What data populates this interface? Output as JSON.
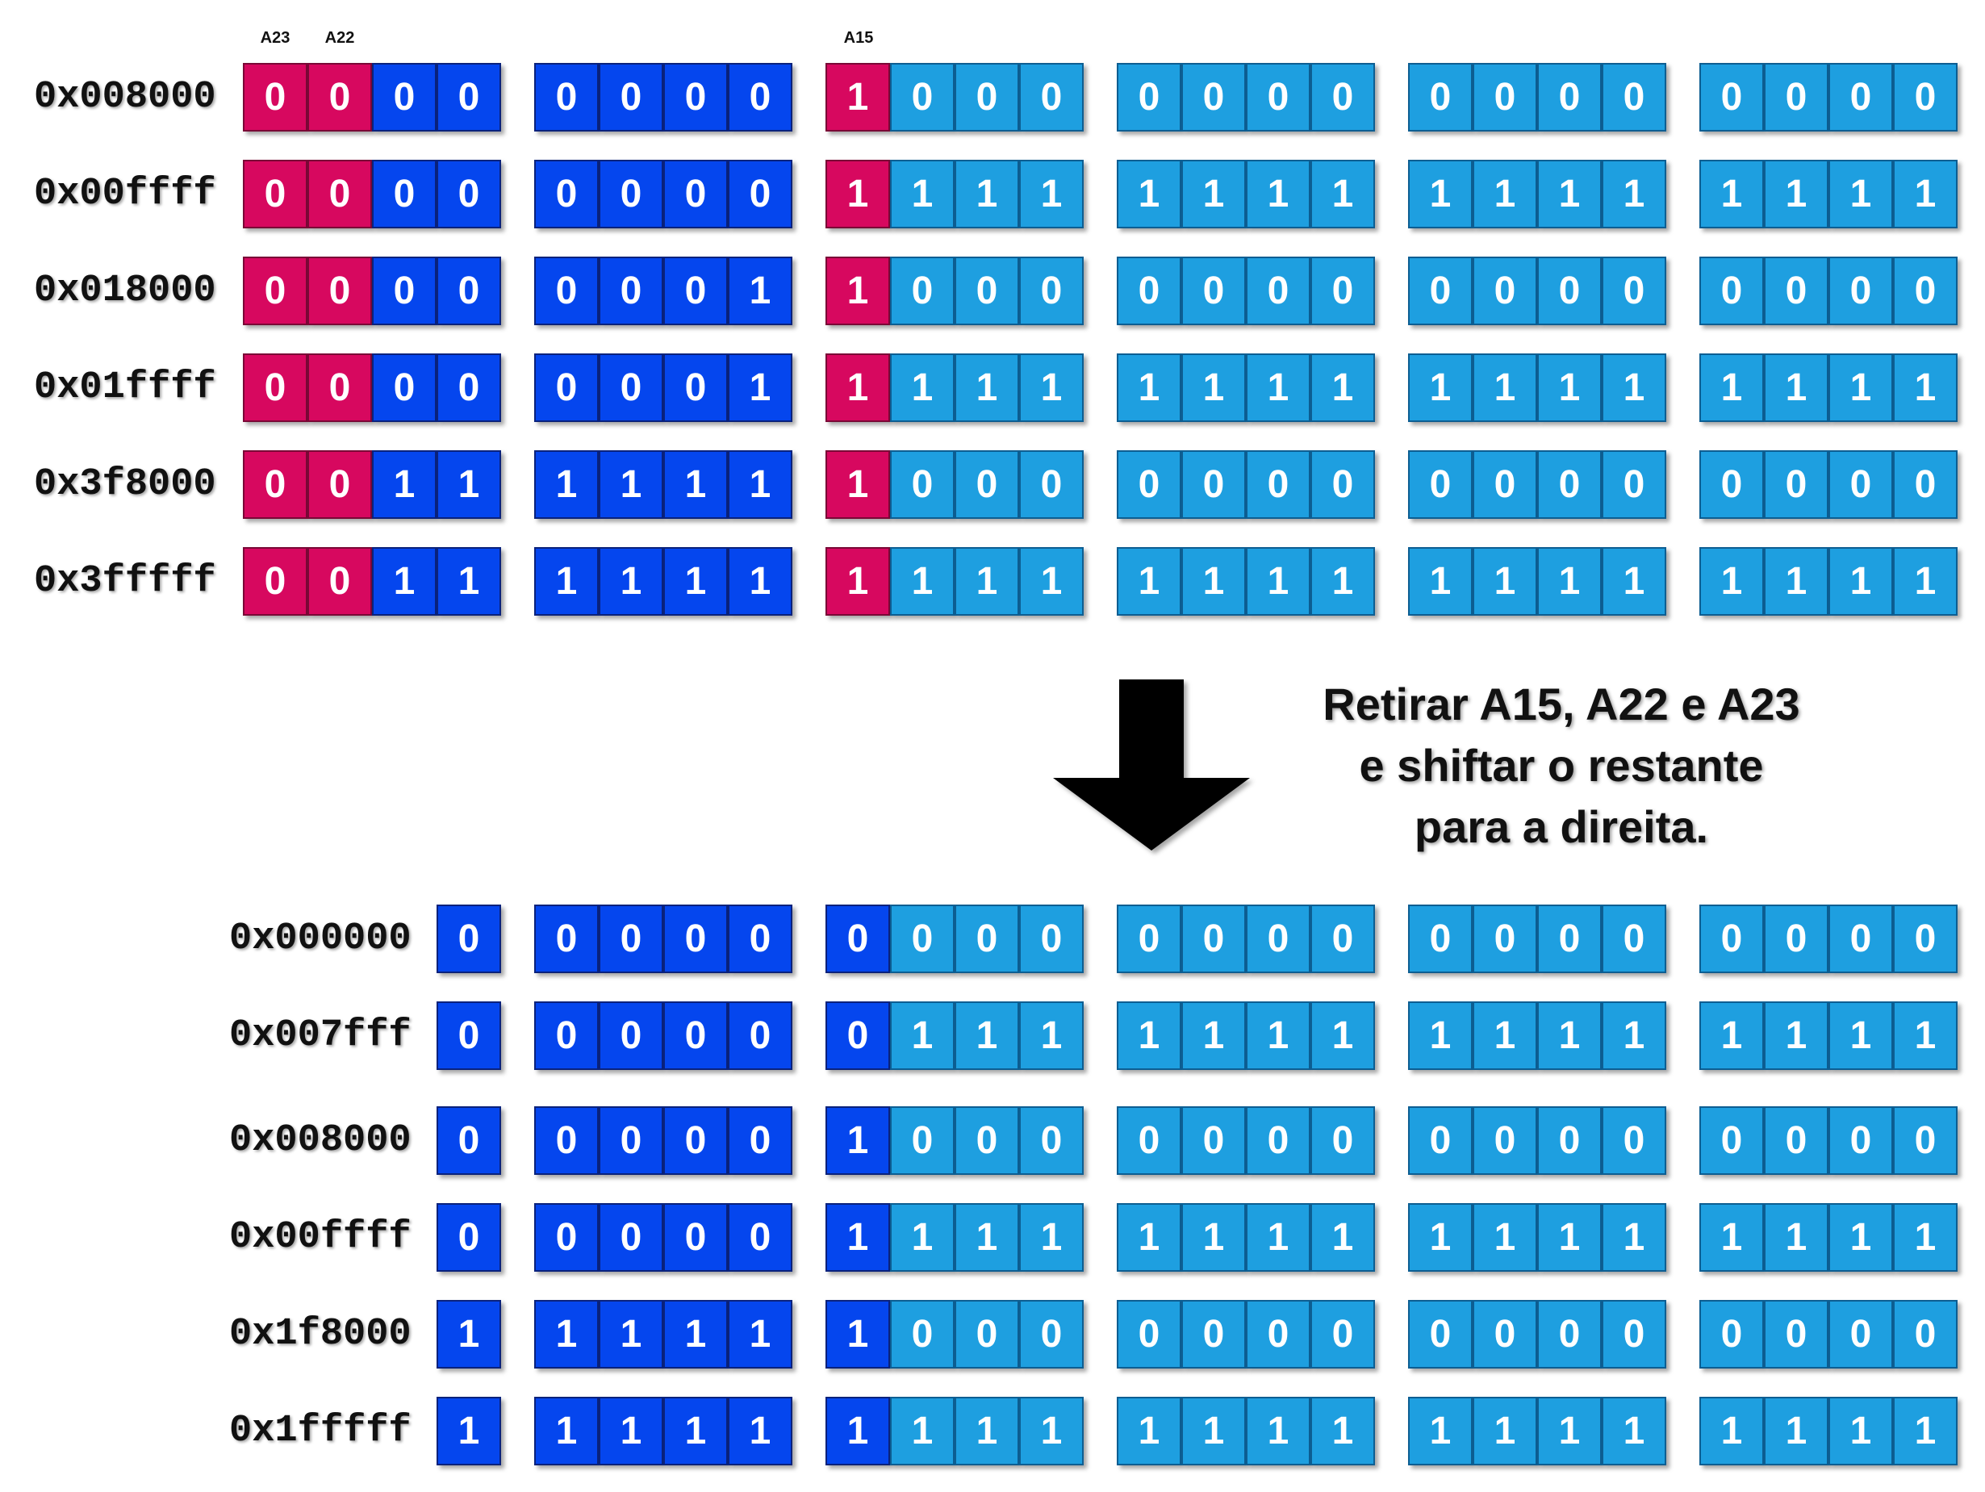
{
  "bit_labels": {
    "a23": "A23",
    "a22": "A22",
    "a15": "A15"
  },
  "top_rows": [
    {
      "address": "0x008000",
      "bits": [
        "0",
        "0",
        "0",
        "0",
        "0",
        "0",
        "0",
        "0",
        "1",
        "0",
        "0",
        "0",
        "0",
        "0",
        "0",
        "0",
        "0",
        "0",
        "0",
        "0",
        "0",
        "0",
        "0",
        "0"
      ]
    },
    {
      "address": "0x00ffff",
      "bits": [
        "0",
        "0",
        "0",
        "0",
        "0",
        "0",
        "0",
        "0",
        "1",
        "1",
        "1",
        "1",
        "1",
        "1",
        "1",
        "1",
        "1",
        "1",
        "1",
        "1",
        "1",
        "1",
        "1",
        "1"
      ]
    },
    {
      "address": "0x018000",
      "bits": [
        "0",
        "0",
        "0",
        "0",
        "0",
        "0",
        "0",
        "1",
        "1",
        "0",
        "0",
        "0",
        "0",
        "0",
        "0",
        "0",
        "0",
        "0",
        "0",
        "0",
        "0",
        "0",
        "0",
        "0"
      ]
    },
    {
      "address": "0x01ffff",
      "bits": [
        "0",
        "0",
        "0",
        "0",
        "0",
        "0",
        "0",
        "1",
        "1",
        "1",
        "1",
        "1",
        "1",
        "1",
        "1",
        "1",
        "1",
        "1",
        "1",
        "1",
        "1",
        "1",
        "1",
        "1"
      ]
    },
    {
      "address": "0x3f8000",
      "bits": [
        "0",
        "0",
        "1",
        "1",
        "1",
        "1",
        "1",
        "1",
        "1",
        "0",
        "0",
        "0",
        "0",
        "0",
        "0",
        "0",
        "0",
        "0",
        "0",
        "0",
        "0",
        "0",
        "0",
        "0"
      ]
    },
    {
      "address": "0x3fffff",
      "bits": [
        "0",
        "0",
        "1",
        "1",
        "1",
        "1",
        "1",
        "1",
        "1",
        "1",
        "1",
        "1",
        "1",
        "1",
        "1",
        "1",
        "1",
        "1",
        "1",
        "1",
        "1",
        "1",
        "1",
        "1"
      ]
    }
  ],
  "caption": {
    "line1": "Retirar A15, A22 e A23",
    "line2": "e shiftar o restante",
    "line3": "para a direita."
  },
  "bottom_rows": [
    {
      "address": "0x000000",
      "bits": [
        "0",
        "0",
        "0",
        "0",
        "0",
        "0",
        "0",
        "0",
        "0",
        "0",
        "0",
        "0",
        "0",
        "0",
        "0",
        "0",
        "0",
        "0",
        "0",
        "0",
        "0"
      ]
    },
    {
      "address": "0x007fff",
      "bits": [
        "0",
        "0",
        "0",
        "0",
        "0",
        "0",
        "1",
        "1",
        "1",
        "1",
        "1",
        "1",
        "1",
        "1",
        "1",
        "1",
        "1",
        "1",
        "1",
        "1",
        "1"
      ]
    },
    {
      "address": "0x008000",
      "bits": [
        "0",
        "0",
        "0",
        "0",
        "0",
        "1",
        "0",
        "0",
        "0",
        "0",
        "0",
        "0",
        "0",
        "0",
        "0",
        "0",
        "0",
        "0",
        "0",
        "0",
        "0"
      ]
    },
    {
      "address": "0x00ffff",
      "bits": [
        "0",
        "0",
        "0",
        "0",
        "0",
        "1",
        "1",
        "1",
        "1",
        "1",
        "1",
        "1",
        "1",
        "1",
        "1",
        "1",
        "1",
        "1",
        "1",
        "1",
        "1"
      ]
    },
    {
      "address": "0x1f8000",
      "bits": [
        "1",
        "1",
        "1",
        "1",
        "1",
        "1",
        "0",
        "0",
        "0",
        "0",
        "0",
        "0",
        "0",
        "0",
        "0",
        "0",
        "0",
        "0",
        "0",
        "0",
        "0"
      ]
    },
    {
      "address": "0x1fffff",
      "bits": [
        "1",
        "1",
        "1",
        "1",
        "1",
        "1",
        "1",
        "1",
        "1",
        "1",
        "1",
        "1",
        "1",
        "1",
        "1",
        "1",
        "1",
        "1",
        "1",
        "1",
        "1"
      ]
    }
  ],
  "colors": {
    "removed_bit": "#d7085f",
    "high_bits": "#0546ee",
    "low_bits": "#1e9fe0"
  }
}
